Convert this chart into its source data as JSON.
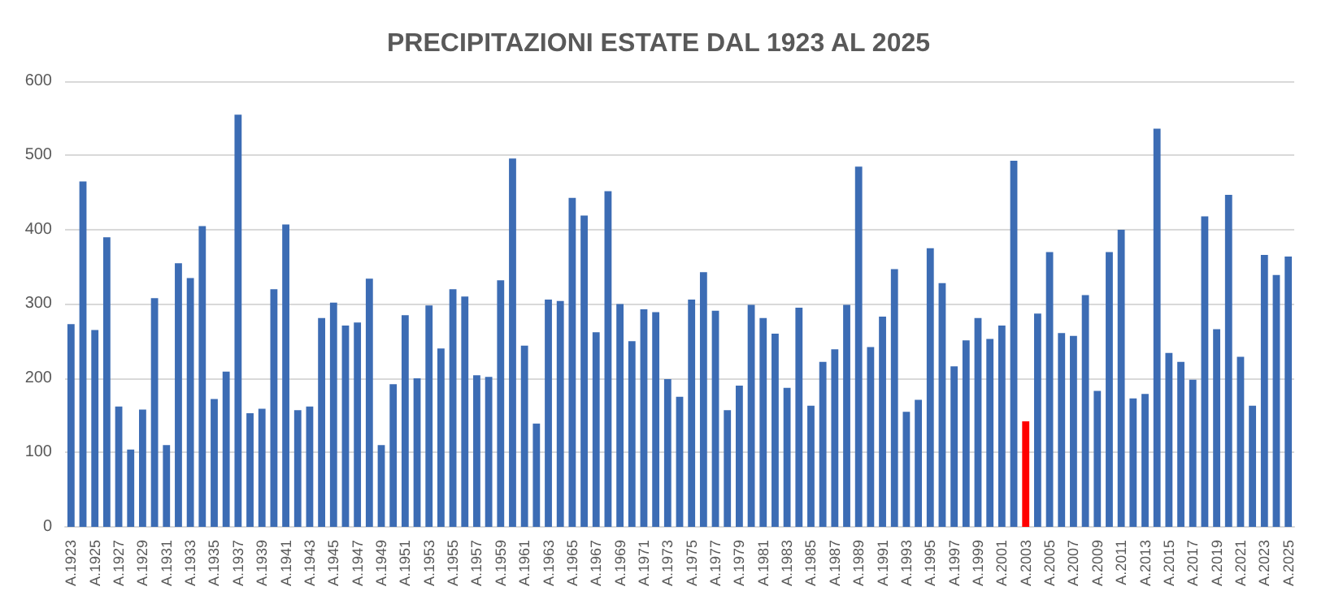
{
  "chart_data": {
    "type": "bar",
    "title": "PRECIPITAZIONI ESTATE DAL 1923 AL 2025",
    "categories": [
      "A.1923",
      null,
      "A.1925",
      null,
      "A.1927",
      null,
      "A.1929",
      null,
      "A.1931",
      null,
      "A.1933",
      null,
      "A.1935",
      null,
      "A.1937",
      null,
      "A.1939",
      null,
      "A.1941",
      null,
      "A.1943",
      null,
      "A.1945",
      null,
      "A.1947",
      null,
      "A.1949",
      null,
      "A.1951",
      null,
      "A.1953",
      null,
      "A.1955",
      null,
      "A.1957",
      null,
      "A.1959",
      null,
      "A.1961",
      null,
      "A.1963",
      null,
      "A.1965",
      null,
      "A.1967",
      null,
      "A.1969",
      null,
      "A.1971",
      null,
      "A.1973",
      null,
      "A.1975",
      null,
      "A.1977",
      null,
      "A.1979",
      null,
      "A.1981",
      null,
      "A.1983",
      null,
      "A.1985",
      null,
      "A.1987",
      null,
      "A.1989",
      null,
      "A.1991",
      null,
      "A.1993",
      null,
      "A.1995",
      null,
      "A.1997",
      null,
      "A.1999",
      null,
      "A.2001",
      null,
      "A.2003",
      null,
      "A.2005",
      null,
      "A.2007",
      null,
      "A.2009",
      null,
      "A.2011",
      null,
      "A.2013",
      null,
      "A.2015",
      null,
      "A.2017",
      null,
      "A.2019",
      null,
      "A.2021",
      null,
      "A.2023",
      null,
      "A.2025"
    ],
    "values": [
      273,
      465,
      265,
      390,
      162,
      104,
      158,
      308,
      110,
      355,
      335,
      405,
      172,
      209,
      555,
      153,
      159,
      320,
      407,
      157,
      162,
      281,
      302,
      271,
      275,
      334,
      110,
      192,
      285,
      200,
      298,
      240,
      320,
      310,
      204,
      202,
      332,
      496,
      244,
      139,
      306,
      304,
      443,
      419,
      262,
      452,
      300,
      250,
      293,
      289,
      199,
      175,
      306,
      343,
      291,
      157,
      190,
      299,
      281,
      260,
      187,
      295,
      163,
      222,
      239,
      299,
      485,
      242,
      283,
      347,
      155,
      171,
      375,
      328,
      216,
      251,
      281,
      253,
      271,
      493,
      142,
      287,
      370,
      261,
      257,
      312,
      183,
      370,
      400,
      173,
      179,
      536,
      234,
      222,
      198,
      418,
      266,
      447,
      229,
      163,
      366,
      339,
      364
    ],
    "colors": [
      "#3c6cb4",
      "#3c6cb4",
      "#3c6cb4",
      "#3c6cb4",
      "#3c6cb4",
      "#3c6cb4",
      "#3c6cb4",
      "#3c6cb4",
      "#3c6cb4",
      "#3c6cb4",
      "#3c6cb4",
      "#3c6cb4",
      "#3c6cb4",
      "#3c6cb4",
      "#3c6cb4",
      "#3c6cb4",
      "#3c6cb4",
      "#3c6cb4",
      "#3c6cb4",
      "#3c6cb4",
      "#3c6cb4",
      "#3c6cb4",
      "#3c6cb4",
      "#3c6cb4",
      "#3c6cb4",
      "#3c6cb4",
      "#3c6cb4",
      "#3c6cb4",
      "#3c6cb4",
      "#3c6cb4",
      "#3c6cb4",
      "#3c6cb4",
      "#3c6cb4",
      "#3c6cb4",
      "#3c6cb4",
      "#3c6cb4",
      "#3c6cb4",
      "#3c6cb4",
      "#3c6cb4",
      "#3c6cb4",
      "#3c6cb4",
      "#3c6cb4",
      "#3c6cb4",
      "#3c6cb4",
      "#3c6cb4",
      "#3c6cb4",
      "#3c6cb4",
      "#3c6cb4",
      "#3c6cb4",
      "#3c6cb4",
      "#3c6cb4",
      "#3c6cb4",
      "#3c6cb4",
      "#3c6cb4",
      "#3c6cb4",
      "#3c6cb4",
      "#3c6cb4",
      "#3c6cb4",
      "#3c6cb4",
      "#3c6cb4",
      "#3c6cb4",
      "#3c6cb4",
      "#3c6cb4",
      "#3c6cb4",
      "#3c6cb4",
      "#3c6cb4",
      "#3c6cb4",
      "#3c6cb4",
      "#3c6cb4",
      "#3c6cb4",
      "#3c6cb4",
      "#3c6cb4",
      "#3c6cb4",
      "#3c6cb4",
      "#3c6cb4",
      "#3c6cb4",
      "#3c6cb4",
      "#3c6cb4",
      "#3c6cb4",
      "#3c6cb4",
      "#ff0000",
      "#3c6cb4",
      "#3c6cb4",
      "#3c6cb4",
      "#3c6cb4",
      "#3c6cb4",
      "#3c6cb4",
      "#3c6cb4",
      "#3c6cb4",
      "#3c6cb4",
      "#3c6cb4",
      "#3c6cb4",
      "#3c6cb4",
      "#3c6cb4",
      "#3c6cb4",
      "#3c6cb4",
      "#3c6cb4",
      "#3c6cb4",
      "#3c6cb4",
      "#3c6cb4",
      "#3c6cb4",
      "#3c6cb4",
      "#3c6cb4"
    ],
    "ylim": [
      0,
      600
    ],
    "yticks": [
      0,
      100,
      200,
      300,
      400,
      500,
      600
    ],
    "grid": "y"
  }
}
